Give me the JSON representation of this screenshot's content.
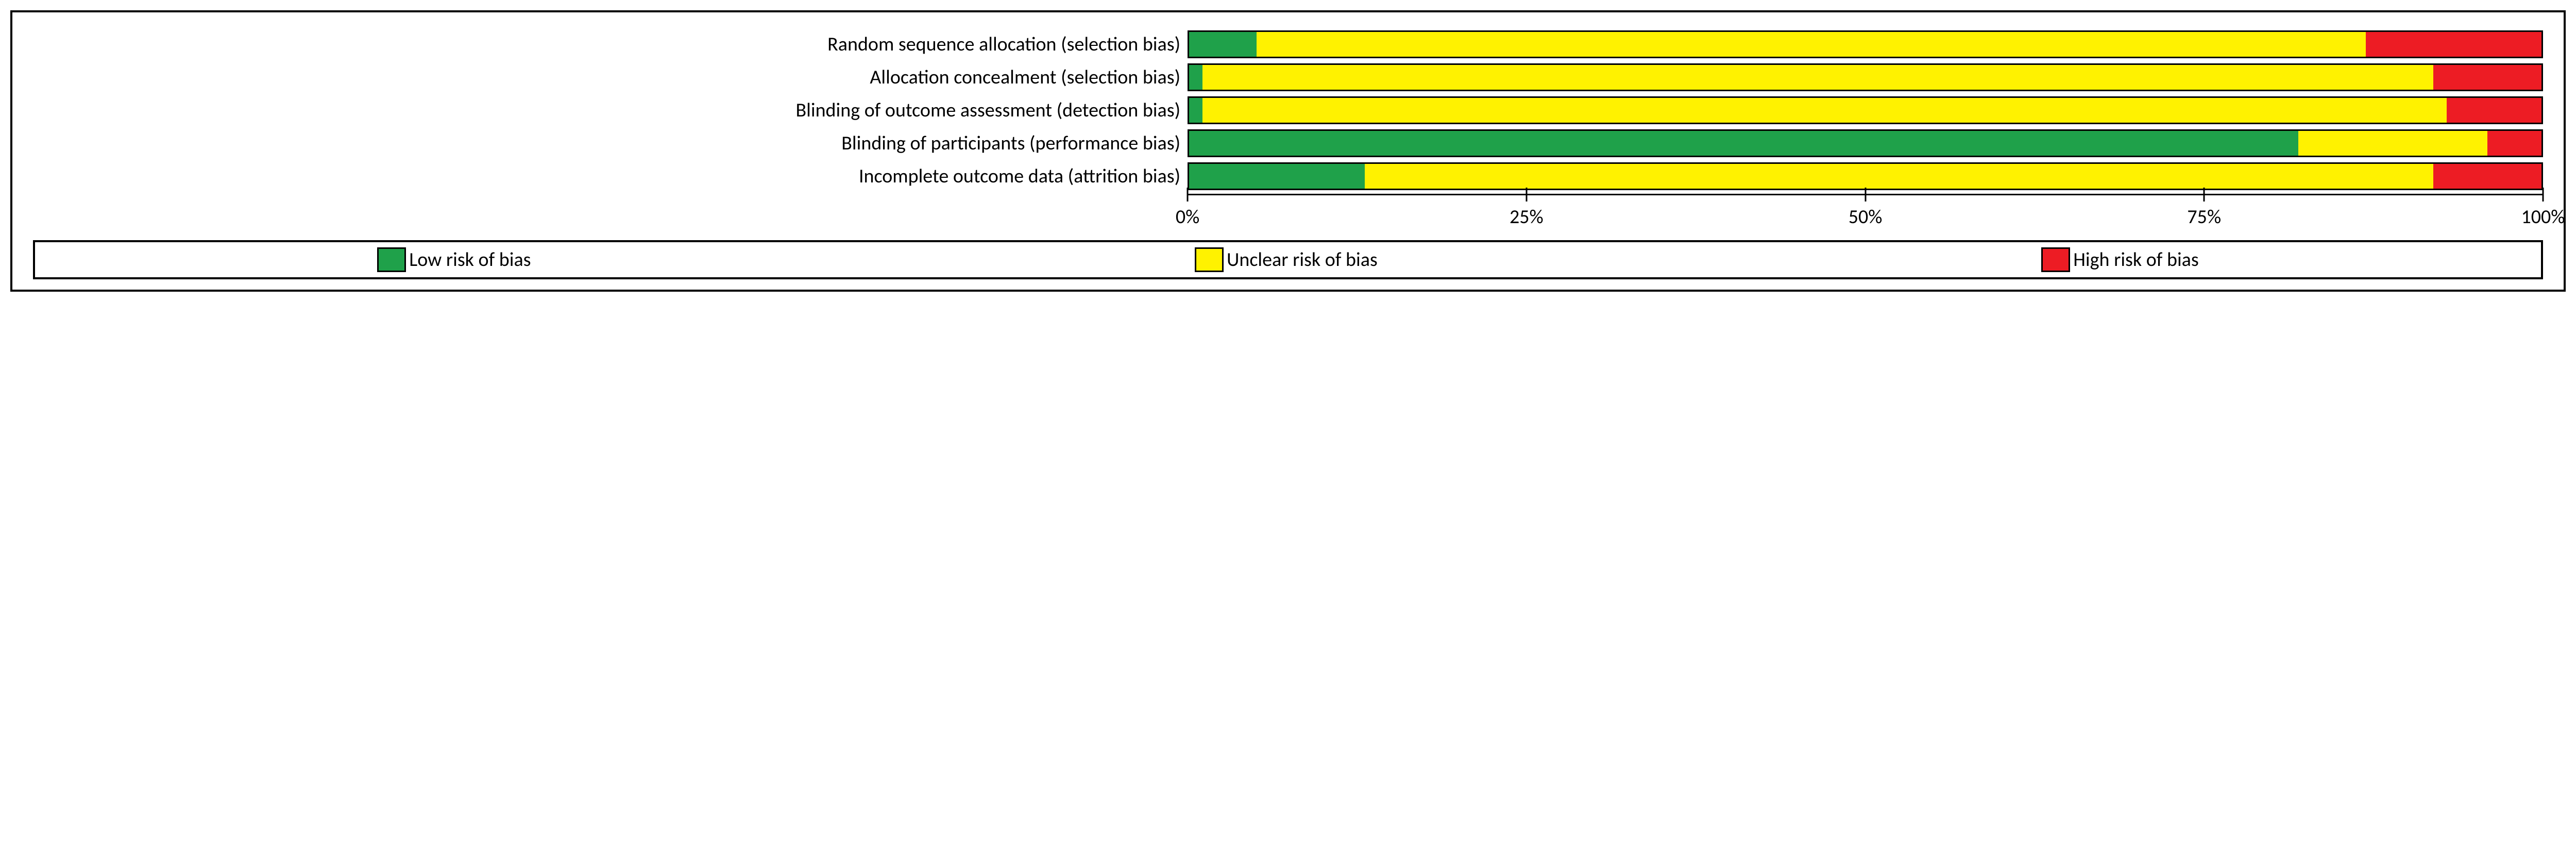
{
  "chart": {
    "type": "stacked-bar-horizontal",
    "background_color": "#ffffff",
    "border_color": "#000000",
    "font_family": "Calibri, Arial, sans-serif",
    "label_fontsize": 38,
    "colors": {
      "low": "#1fa14a",
      "unclear": "#fff200",
      "high": "#ed1c24"
    },
    "categories": [
      {
        "label": "Random sequence allocation (selection bias)",
        "low": 5,
        "unclear": 82,
        "high": 13
      },
      {
        "label": "Allocation concealment (selection bias)",
        "low": 1,
        "unclear": 91,
        "high": 8
      },
      {
        "label": "Blinding of outcome assessment (detection bias)",
        "low": 1,
        "unclear": 92,
        "high": 7
      },
      {
        "label": "Blinding of participants (performance bias)",
        "low": 82,
        "unclear": 14,
        "high": 4
      },
      {
        "label": "Incomplete outcome data (attrition bias)",
        "low": 13,
        "unclear": 79,
        "high": 8
      }
    ],
    "axis": {
      "ticks": [
        0,
        25,
        50,
        75,
        100
      ],
      "tick_labels": [
        "0%",
        "25%",
        "50%",
        "75%",
        "100%"
      ]
    },
    "legend": [
      {
        "key": "low",
        "label": "Low risk of bias"
      },
      {
        "key": "unclear",
        "label": "Unclear risk of bias"
      },
      {
        "key": "high",
        "label": "High risk of bias"
      }
    ]
  }
}
